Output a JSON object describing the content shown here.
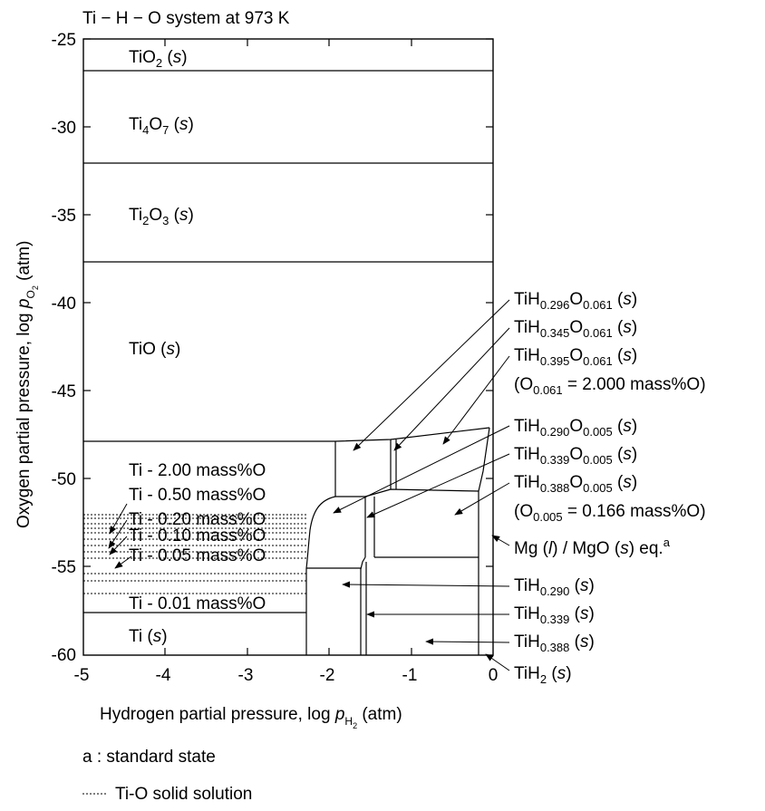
{
  "title": "Ti − H − O system at 973 K",
  "axes": {
    "x_title_prefix": "Hydrogen partial pressure, log ",
    "x_title_p": "p",
    "x_title_sub": "H",
    "x_title_subsub": "2",
    "x_title_suffix": " (atm)",
    "y_title_prefix": "Oxygen partial pressure, log ",
    "y_title_p": "p",
    "y_title_sub": "O",
    "y_title_subsub": "2",
    "y_title_suffix": " (atm)",
    "x_ticks": [
      "-5",
      "-4",
      "-3",
      "-2",
      "-1",
      "0"
    ],
    "y_ticks": [
      "-25",
      "-30",
      "-35",
      "-40",
      "-45",
      "-50",
      "-55",
      "-60"
    ],
    "x_range": [
      -5,
      0
    ],
    "y_range": [
      -60,
      -25
    ]
  },
  "regions": {
    "tio2": {
      "base": "TiO",
      "sub": "2",
      "state": "s"
    },
    "ti4o7": {
      "base1": "Ti",
      "sub1": "4",
      "base2": "O",
      "sub2": "7",
      "state": "s"
    },
    "ti2o3": {
      "base1": "Ti",
      "sub1": "2",
      "base2": "O",
      "sub2": "3",
      "state": "s"
    },
    "tio": {
      "base": "TiO",
      "state": "s"
    },
    "ti200": "Ti - 2.00 mass%O",
    "ti050": "Ti - 0.50 mass%O",
    "ti020": "Ti - 0.20 mass%O",
    "ti010": "Ti - 0.10 mass%O",
    "ti005": "Ti - 0.05 mass%O",
    "ti001": "Ti - 0.01 mass%O",
    "ti": {
      "base": "Ti",
      "state": "s"
    }
  },
  "right_labels": [
    {
      "base": "TiH",
      "sub1": "0.296",
      "mid": "O",
      "sub2": "0.061",
      "state": "s"
    },
    {
      "base": "TiH",
      "sub1": "0.345",
      "mid": "O",
      "sub2": "0.061",
      "state": "s"
    },
    {
      "base": "TiH",
      "sub1": "0.395",
      "mid": "O",
      "sub2": "0.061",
      "state": "s"
    },
    {
      "base": "TiH",
      "sub1": "0.290",
      "mid": "O",
      "sub2": "0.005",
      "state": "s"
    },
    {
      "base": "TiH",
      "sub1": "0.339",
      "mid": "O",
      "sub2": "0.005",
      "state": "s"
    },
    {
      "base": "TiH",
      "sub1": "0.388",
      "mid": "O",
      "sub2": "0.005",
      "state": "s"
    },
    {
      "base": "TiH",
      "sub1": "0.290",
      "state": "s"
    },
    {
      "base": "TiH",
      "sub1": "0.339",
      "state": "s"
    },
    {
      "base": "TiH",
      "sub1": "0.388",
      "state": "s"
    },
    {
      "base": "TiH",
      "sub1": "2",
      "state": "s"
    }
  ],
  "composition_notes": [
    {
      "o": "O",
      "sub": "0.061",
      "rest": " = 2.000 mass%O)"
    },
    {
      "o": "O",
      "sub": "0.005",
      "rest": " = 0.166 mass%O)"
    }
  ],
  "mg_label": {
    "a": "Mg (",
    "l": "l",
    "b": ") / MgO (",
    "s": "s",
    "c": ") eq.",
    "sup": "a"
  },
  "footnotes": {
    "standard_state": "a : standard state",
    "solid_solution": "Ti-O solid solution"
  }
}
